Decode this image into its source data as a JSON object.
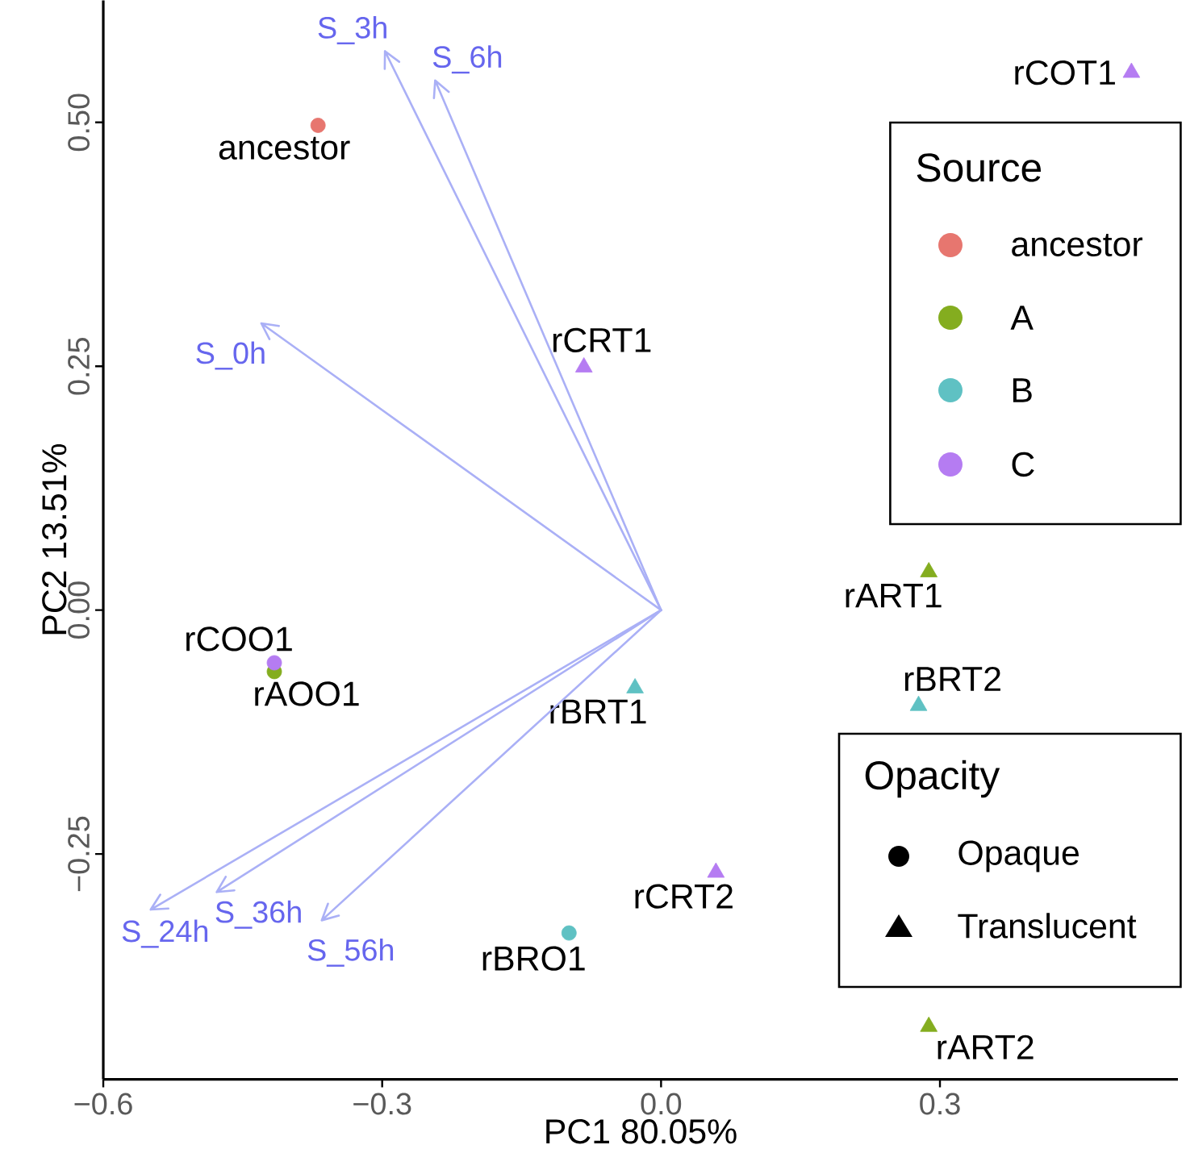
{
  "chart_data": {
    "type": "scatter",
    "xlabel": "PC1 80.05%",
    "ylabel": "PC2 13.51%",
    "xlim": [
      -0.6,
      0.556
    ],
    "ylim": [
      -0.481,
      0.625
    ],
    "xticks": [
      {
        "value": -0.6,
        "label": "−0.6"
      },
      {
        "value": -0.3,
        "label": "−0.3"
      },
      {
        "value": 0.0,
        "label": "0.0"
      },
      {
        "value": 0.3,
        "label": "0.3"
      }
    ],
    "yticks": [
      {
        "value": -0.25,
        "label": "−0.25"
      },
      {
        "value": 0.0,
        "label": "0.00"
      },
      {
        "value": 0.25,
        "label": "0.25"
      },
      {
        "value": 0.5,
        "label": "0.50"
      }
    ],
    "grid": false,
    "legend": "right",
    "legend_title": "Source",
    "series": [
      {
        "type": "line",
        "name": "S_0h",
        "color": "#aab0f6",
        "x": [
          0,
          -0.43
        ],
        "values": [
          0,
          0.294
        ]
      },
      {
        "type": "line",
        "name": "S_3h",
        "color": "#aab0f6",
        "x": [
          0,
          -0.297
        ],
        "values": [
          0,
          0.573
        ]
      },
      {
        "type": "line",
        "name": "S_6h",
        "color": "#aab0f6",
        "x": [
          0,
          -0.243
        ],
        "values": [
          0,
          0.543
        ]
      },
      {
        "type": "line",
        "name": "S_24h",
        "color": "#aab0f6",
        "x": [
          0,
          -0.549
        ],
        "values": [
          0,
          -0.307
        ]
      },
      {
        "type": "line",
        "name": "S_36h",
        "color": "#aab0f6",
        "x": [
          0,
          -0.478
        ],
        "values": [
          0,
          -0.289
        ]
      },
      {
        "type": "line",
        "name": "S_56h",
        "color": "#aab0f6",
        "x": [
          0,
          -0.365
        ],
        "values": [
          0,
          -0.318
        ]
      },
      {
        "name": "ancestor",
        "color": "#e7766f",
        "marker": "circle",
        "x": [
          -0.369
        ],
        "values": [
          0.497
        ]
      },
      {
        "name": "A",
        "color": "#84ad1f",
        "marker": "circle",
        "x": [
          -0.416
        ],
        "values": [
          -0.063
        ]
      },
      {
        "color": "#84ad1f",
        "marker": "triangle",
        "x": [
          0.288,
          0.288
        ],
        "values": [
          0.039,
          -0.427
        ]
      },
      {
        "name": "B",
        "color": "#5fc1c3",
        "marker": "circle",
        "x": [
          -0.099
        ],
        "values": [
          -0.331
        ]
      },
      {
        "color": "#5fc1c3",
        "marker": "triangle",
        "x": [
          -0.028,
          0.277
        ],
        "values": [
          -0.08,
          -0.098
        ]
      },
      {
        "name": "C",
        "color": "#b57cf2",
        "marker": "circle",
        "x": [
          -0.416
        ],
        "values": [
          -0.054
        ]
      },
      {
        "color": "#b57cf2",
        "marker": "triangle",
        "x": [
          -0.083,
          0.059,
          0.506
        ],
        "values": [
          0.249,
          -0.269,
          0.551
        ]
      }
    ],
    "annotations": [
      {
        "text": "ancestor",
        "x": -0.369,
        "y": 0.497
      },
      {
        "text": "rCOT1",
        "x": 0.506,
        "y": 0.551
      },
      {
        "text": "rCRT1",
        "x": -0.083,
        "y": 0.249
      },
      {
        "text": "rART1",
        "x": 0.288,
        "y": 0.039
      },
      {
        "text": "rBRT2",
        "x": 0.277,
        "y": -0.098
      },
      {
        "text": "rBRT1",
        "x": -0.028,
        "y": -0.08
      },
      {
        "text": "rCOO1",
        "x": -0.416,
        "y": -0.054
      },
      {
        "text": "rAOO1",
        "x": -0.416,
        "y": -0.063
      },
      {
        "text": "rCRT2",
        "x": 0.059,
        "y": -0.269
      },
      {
        "text": "rBRO1",
        "x": -0.099,
        "y": -0.331
      },
      {
        "text": "rART2",
        "x": 0.288,
        "y": -0.427
      },
      "Opacity",
      "Opaque",
      "Translucent"
    ]
  }
}
